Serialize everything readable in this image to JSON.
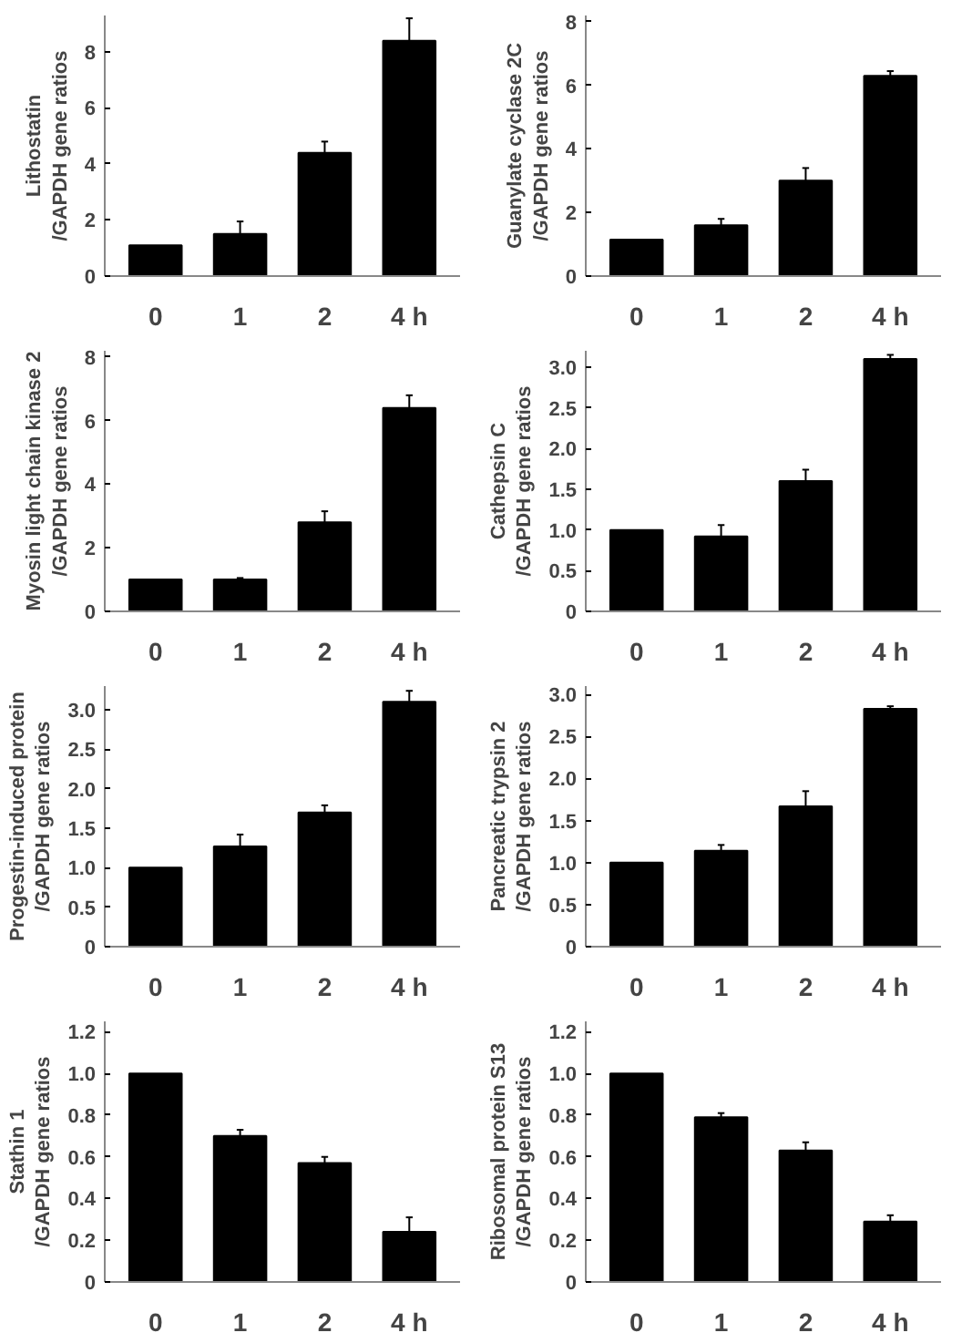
{
  "chart_data": [
    {
      "type": "bar",
      "ylabel": "Lithostatin\n/GAPDH gene ratios",
      "categories": [
        "0",
        "1",
        "2",
        "4 h"
      ],
      "values": [
        1.1,
        1.5,
        4.4,
        8.4
      ],
      "errors": [
        null,
        0.45,
        0.4,
        0.8
      ],
      "color": "#000000",
      "ylim": [
        0,
        9.3
      ],
      "yticks": [
        0,
        2,
        4,
        6,
        8
      ],
      "grid": false
    },
    {
      "type": "bar",
      "ylabel": "Guanylate cyclase 2C\n/GAPDH gene ratios",
      "categories": [
        "0",
        "1",
        "2",
        "4 h"
      ],
      "values": [
        1.15,
        1.6,
        3.0,
        6.3
      ],
      "errors": [
        null,
        0.2,
        0.4,
        0.15
      ],
      "color": "#000000",
      "ylim": [
        0,
        8.2
      ],
      "yticks": [
        0,
        2,
        4,
        6,
        8
      ],
      "grid": false
    },
    {
      "type": "bar",
      "ylabel": "Myosin light chain kinase 2\n/GAPDH gene ratios",
      "categories": [
        "0",
        "1",
        "2",
        "4 h"
      ],
      "values": [
        1.0,
        1.0,
        2.8,
        6.4
      ],
      "errors": [
        null,
        0.05,
        0.35,
        0.4
      ],
      "color": "#000000",
      "ylim": [
        0,
        8.2
      ],
      "yticks": [
        0,
        2,
        4,
        6,
        8
      ],
      "grid": false
    },
    {
      "type": "bar",
      "ylabel": "Cathepsin C\n/GAPDH gene ratios",
      "categories": [
        "0",
        "1",
        "2",
        "4 h"
      ],
      "values": [
        1.0,
        0.92,
        1.6,
        3.1
      ],
      "errors": [
        null,
        0.14,
        0.14,
        0.05
      ],
      "color": "#000000",
      "ylim": [
        0,
        3.2
      ],
      "yticks": [
        0,
        {
          "value": 0.5,
          "label": "0.5"
        },
        {
          "value": 1,
          "label": "1.0"
        },
        {
          "value": 1.5,
          "label": "1.5"
        },
        {
          "value": 2,
          "label": "2.0"
        },
        {
          "value": 2.5,
          "label": "2.5"
        },
        {
          "value": 3,
          "label": "3.0"
        }
      ],
      "grid": false
    },
    {
      "type": "bar",
      "ylabel": "Progestin-induced protein\n/GAPDH gene ratios",
      "categories": [
        "0",
        "1",
        "2",
        "4 h"
      ],
      "values": [
        1.0,
        1.27,
        1.7,
        3.1
      ],
      "errors": [
        null,
        0.15,
        0.09,
        0.14
      ],
      "color": "#000000",
      "ylim": [
        0,
        3.3
      ],
      "yticks": [
        0,
        {
          "value": 0.5,
          "label": "0.5"
        },
        {
          "value": 1,
          "label": "1.0"
        },
        {
          "value": 1.5,
          "label": "1.5"
        },
        {
          "value": 2,
          "label": "2.0"
        },
        {
          "value": 2.5,
          "label": "2.5"
        },
        {
          "value": 3,
          "label": "3.0"
        }
      ],
      "grid": false
    },
    {
      "type": "bar",
      "ylabel": "Pancreatic trypsin 2\n/GAPDH gene ratios",
      "categories": [
        "0",
        "1",
        "2",
        "4 h"
      ],
      "values": [
        1.0,
        1.14,
        1.67,
        2.83
      ],
      "errors": [
        null,
        0.07,
        0.18,
        0.03
      ],
      "color": "#000000",
      "ylim": [
        0,
        3.1
      ],
      "yticks": [
        0,
        {
          "value": 0.5,
          "label": "0.5"
        },
        {
          "value": 1,
          "label": "1.0"
        },
        {
          "value": 1.5,
          "label": "1.5"
        },
        {
          "value": 2,
          "label": "2.0"
        },
        {
          "value": 2.5,
          "label": "2.5"
        },
        {
          "value": 3,
          "label": "3.0"
        }
      ],
      "grid": false
    },
    {
      "type": "bar",
      "ylabel": "Stathin 1\n/GAPDH gene ratios",
      "categories": [
        "0",
        "1",
        "2",
        "4 h"
      ],
      "values": [
        1.0,
        0.7,
        0.57,
        0.24
      ],
      "errors": [
        null,
        0.03,
        0.03,
        0.07
      ],
      "color": "#000000",
      "ylim": [
        0,
        1.25
      ],
      "yticks": [
        0,
        0.2,
        0.4,
        0.6,
        0.8,
        {
          "value": 1,
          "label": "1.0"
        },
        1.2
      ],
      "grid": false
    },
    {
      "type": "bar",
      "ylabel": "Ribosomal protein S13\n/GAPDH gene ratios",
      "categories": [
        "0",
        "1",
        "2",
        "4 h"
      ],
      "values": [
        1.0,
        0.79,
        0.63,
        0.29
      ],
      "errors": [
        null,
        0.02,
        0.04,
        0.03
      ],
      "color": "#000000",
      "ylim": [
        0,
        1.25
      ],
      "yticks": [
        0,
        0.2,
        0.4,
        0.6,
        0.8,
        {
          "value": 1,
          "label": "1.0"
        },
        1.2
      ],
      "grid": false
    }
  ]
}
